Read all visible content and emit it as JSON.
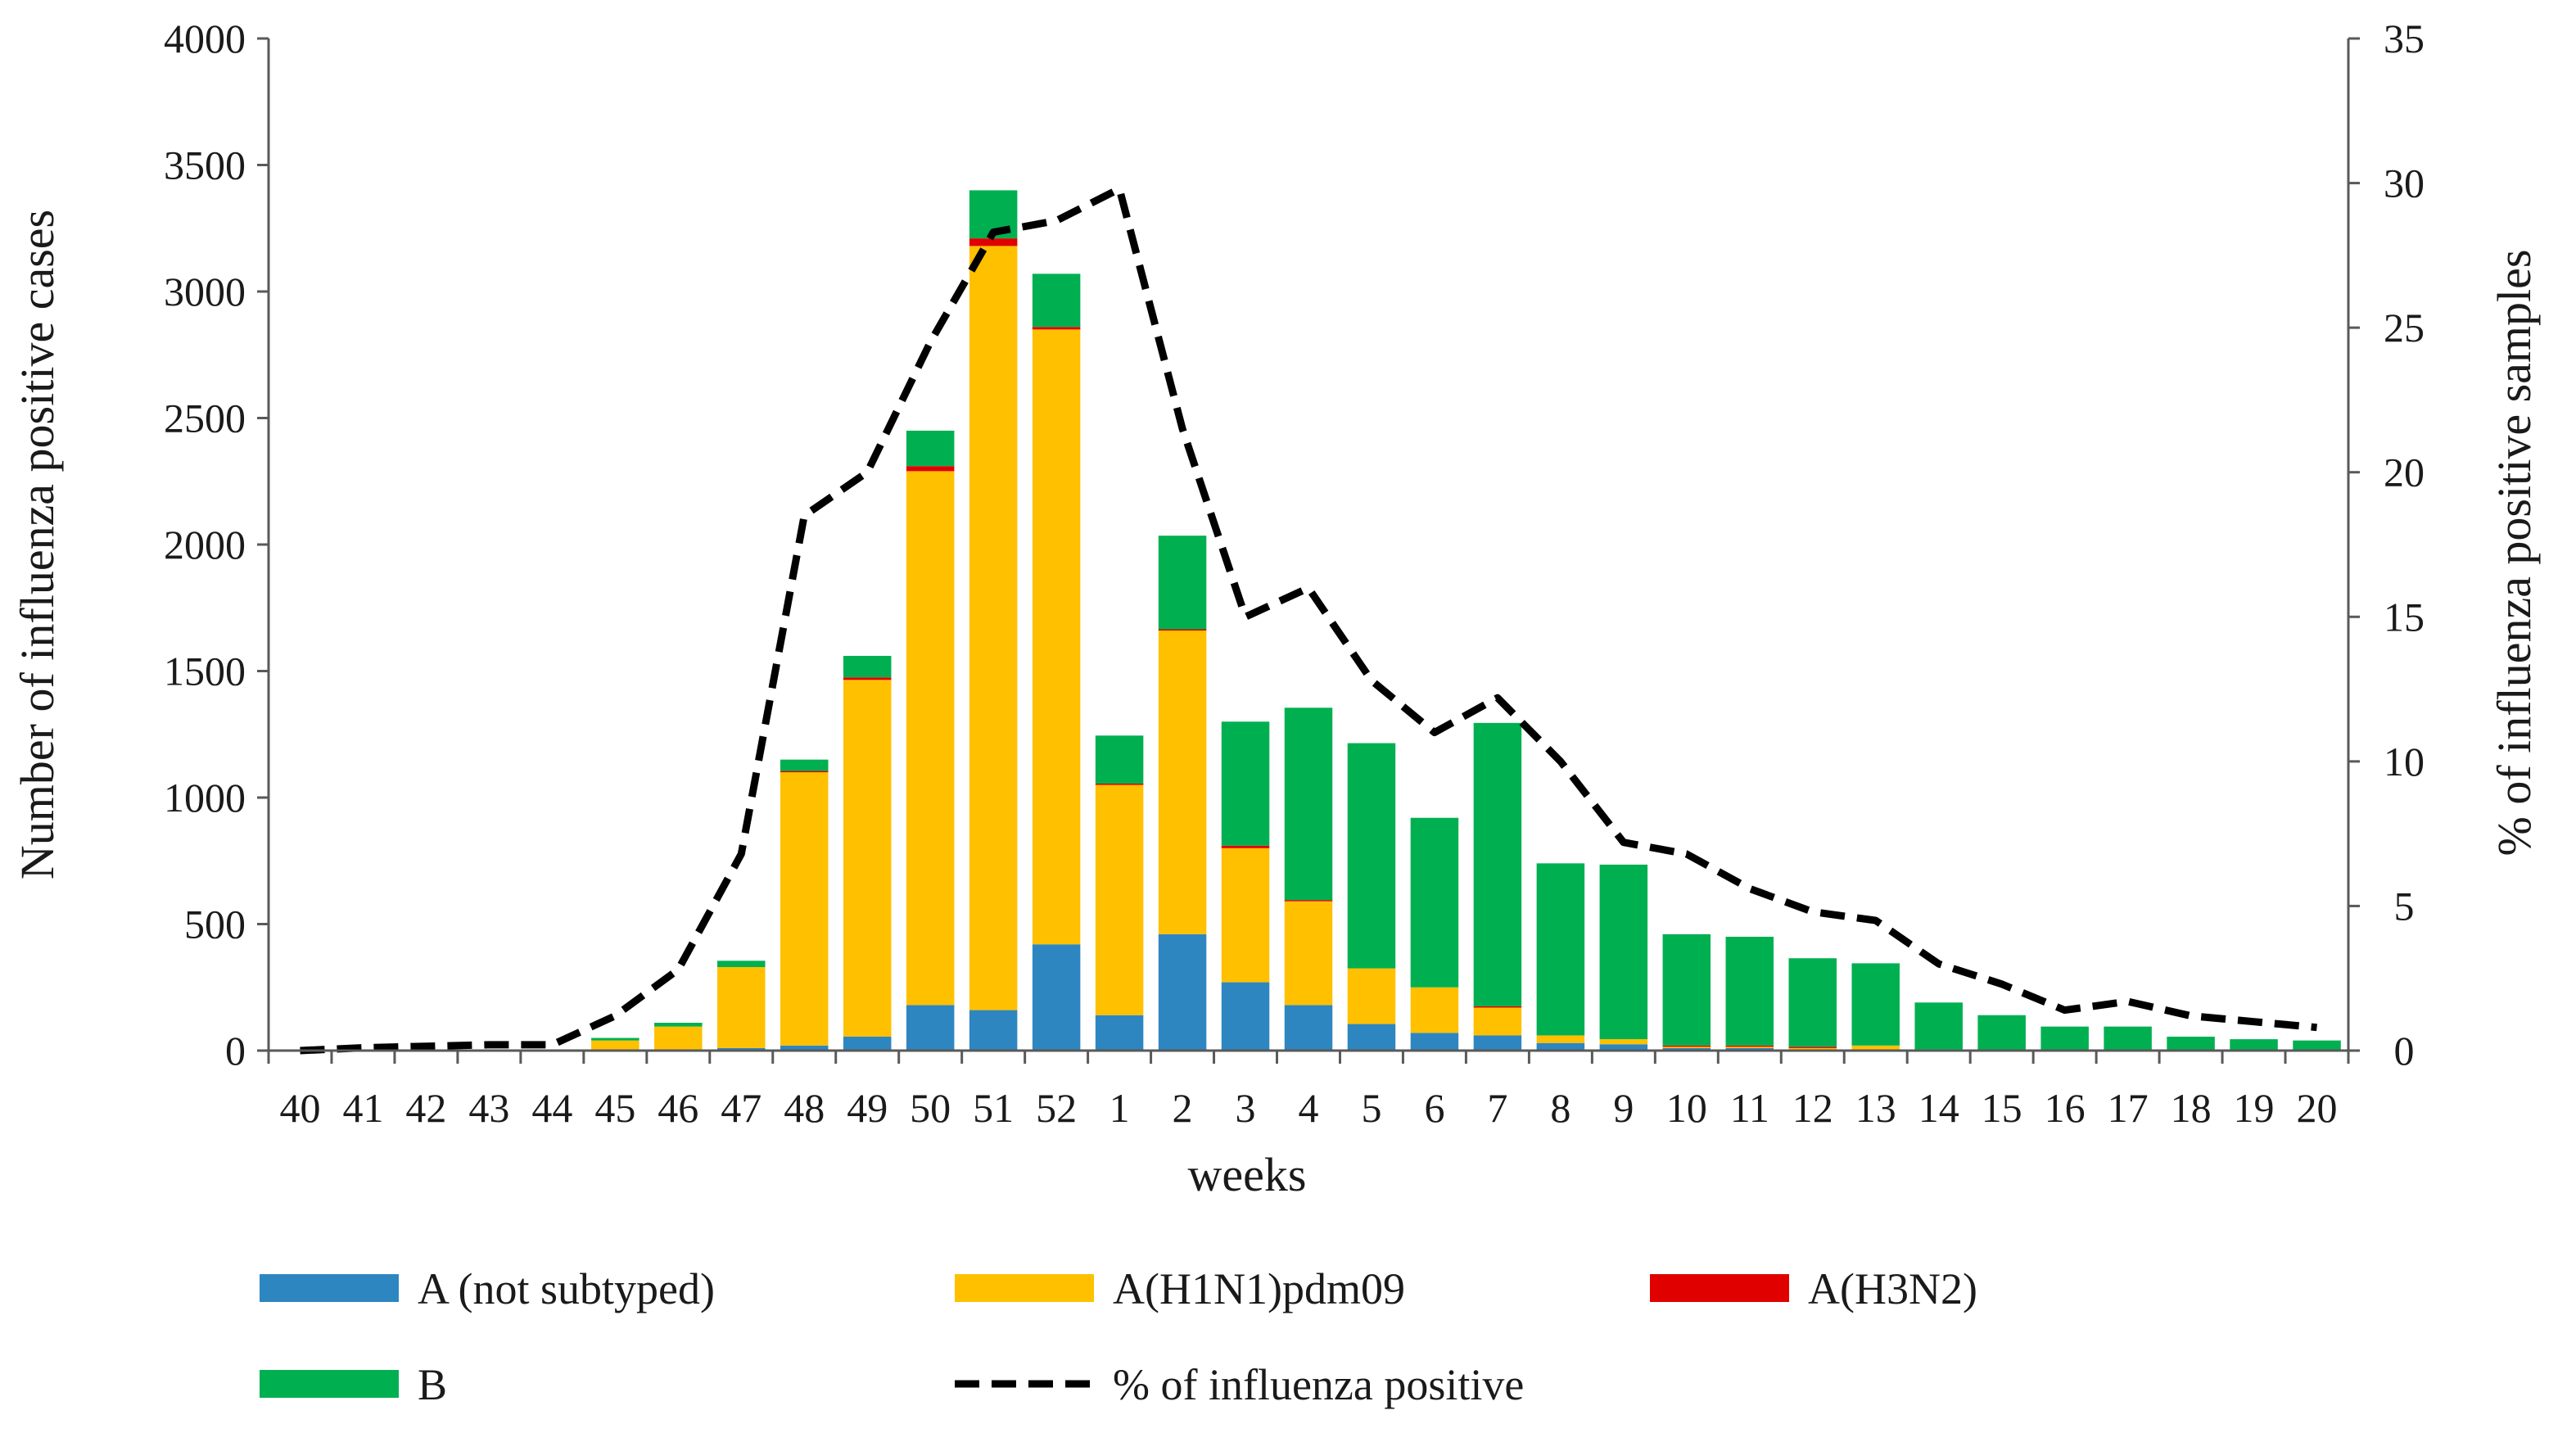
{
  "chart_data": {
    "type": "bar",
    "stacked": true,
    "title": "",
    "xlabel": "weeks",
    "ylabel": "Number of influenza positive cases",
    "y2label": "% of influenza positive samples",
    "ylim": [
      0,
      4000
    ],
    "y2lim": [
      0,
      35
    ],
    "yticks": [
      "0",
      "500",
      "1000",
      "1500",
      "2000",
      "2500",
      "3000",
      "3500",
      "4000"
    ],
    "y2ticks": [
      "0",
      "5",
      "10",
      "15",
      "20",
      "25",
      "30",
      "35"
    ],
    "grid": false,
    "legend_position": "bottom",
    "categories": [
      "40",
      "41",
      "42",
      "43",
      "44",
      "45",
      "46",
      "47",
      "48",
      "49",
      "50",
      "51",
      "52",
      "1",
      "2",
      "3",
      "4",
      "5",
      "6",
      "7",
      "8",
      "9",
      "10",
      "11",
      "12",
      "13",
      "14",
      "15",
      "16",
      "17",
      "18",
      "19",
      "20"
    ],
    "series": [
      {
        "name": "A (not subtyped)",
        "color": "#2E86C1",
        "values": [
          0,
          0,
          0,
          0,
          0,
          5,
          5,
          10,
          20,
          55,
          180,
          160,
          420,
          140,
          460,
          270,
          180,
          105,
          70,
          60,
          30,
          25,
          10,
          10,
          5,
          5,
          0,
          0,
          0,
          0,
          0,
          0,
          0
        ]
      },
      {
        "name": "A(H1N1)pdm09",
        "color": "#FFC000",
        "values": [
          0,
          0,
          0,
          0,
          0,
          35,
          90,
          320,
          1080,
          1410,
          2110,
          3020,
          2430,
          910,
          1200,
          530,
          410,
          220,
          180,
          110,
          30,
          20,
          5,
          5,
          5,
          15,
          5,
          0,
          0,
          0,
          0,
          0,
          0
        ]
      },
      {
        "name": "A(H3N2)",
        "color": "#E00000",
        "values": [
          0,
          0,
          0,
          0,
          0,
          0,
          0,
          0,
          5,
          10,
          20,
          30,
          10,
          5,
          5,
          10,
          5,
          0,
          0,
          5,
          0,
          0,
          5,
          5,
          5,
          0,
          0,
          0,
          0,
          0,
          0,
          0,
          0
        ]
      },
      {
        "name": "B",
        "color": "#00B050",
        "values": [
          0,
          0,
          0,
          0,
          0,
          10,
          15,
          25,
          45,
          85,
          140,
          190,
          210,
          190,
          370,
          490,
          760,
          890,
          670,
          1120,
          680,
          690,
          440,
          430,
          350,
          325,
          185,
          140,
          95,
          95,
          55,
          45,
          40
        ]
      }
    ],
    "line_series": {
      "name": "% of influenza positive",
      "color": "#000000",
      "axis": "right",
      "values": [
        0,
        0.1,
        0.15,
        0.2,
        0.2,
        1.2,
        2.8,
        6.8,
        18.5,
        20,
        24.5,
        28.3,
        28.7,
        29.8,
        21.5,
        15,
        16,
        12.8,
        11,
        12.2,
        10,
        7.2,
        6.8,
        5.6,
        4.8,
        4.5,
        3,
        2.3,
        1.4,
        1.7,
        1.2,
        1.0,
        0.8
      ]
    }
  }
}
